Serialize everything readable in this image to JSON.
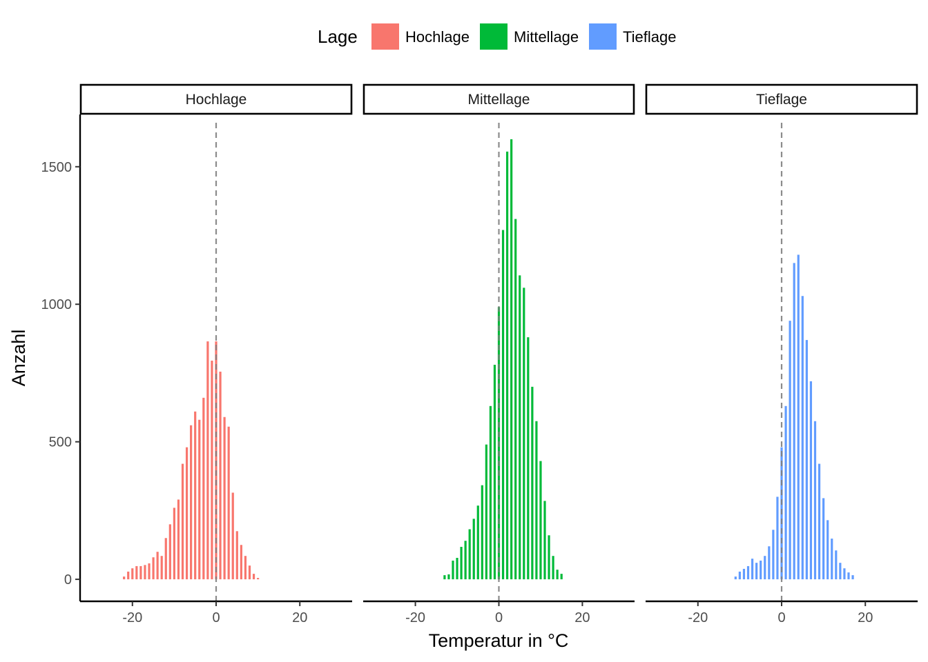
{
  "chart_data": {
    "type": "bar",
    "title": "",
    "xlabel": "Temperatur in °C",
    "ylabel": "Anzahl",
    "xlim": [
      -32.5,
      32.5
    ],
    "ylim": [
      -80,
      1690
    ],
    "x_ticks": [
      -20,
      0,
      20
    ],
    "x_tick_labels": [
      "-20",
      "0",
      "20"
    ],
    "y_ticks": [
      0,
      500,
      1000,
      1500
    ],
    "y_tick_labels": [
      "0",
      "500",
      "1000",
      "1500"
    ],
    "reference_line": {
      "x": 0,
      "style": "dashed",
      "color": "#7f7f7f"
    },
    "legend": {
      "title": "Lage",
      "position": "top",
      "entries": [
        {
          "label": "Hochlage",
          "color": "#F8766D"
        },
        {
          "label": "Mittellage",
          "color": "#00BA38"
        },
        {
          "label": "Tieflage",
          "color": "#619CFF"
        }
      ]
    },
    "facets": [
      {
        "label": "Hochlage",
        "color": "#F8766D",
        "x": [
          -22,
          -21,
          -20,
          -19,
          -18,
          -17,
          -16,
          -15,
          -14,
          -13,
          -12,
          -11,
          -10,
          -9,
          -8,
          -7,
          -6,
          -5,
          -4,
          -3,
          -2,
          -1,
          0,
          1,
          2,
          3,
          4,
          5,
          6,
          7,
          8,
          9,
          10
        ],
        "values": [
          10,
          28,
          40,
          48,
          48,
          52,
          58,
          80,
          100,
          85,
          150,
          200,
          260,
          290,
          420,
          480,
          560,
          610,
          580,
          660,
          865,
          795,
          865,
          755,
          590,
          555,
          315,
          175,
          125,
          85,
          50,
          20,
          5
        ]
      },
      {
        "label": "Mittellage",
        "color": "#00BA38",
        "x": [
          -13,
          -12,
          -11,
          -10,
          -9,
          -8,
          -7,
          -6,
          -5,
          -4,
          -3,
          -2,
          -1,
          0,
          1,
          2,
          3,
          4,
          5,
          6,
          7,
          8,
          9,
          10,
          11,
          12,
          13,
          14,
          15
        ],
        "values": [
          15,
          18,
          68,
          78,
          118,
          140,
          182,
          220,
          268,
          342,
          490,
          630,
          780,
          990,
          1270,
          1555,
          1600,
          1310,
          1105,
          1060,
          880,
          700,
          575,
          430,
          285,
          160,
          85,
          35,
          20
        ]
      },
      {
        "label": "Tieflage",
        "color": "#619CFF",
        "x": [
          -11,
          -10,
          -9,
          -8,
          -7,
          -6,
          -5,
          -4,
          -3,
          -2,
          -1,
          0,
          1,
          2,
          3,
          4,
          5,
          6,
          7,
          8,
          9,
          10,
          11,
          12,
          13,
          14,
          15,
          16,
          17
        ],
        "values": [
          10,
          28,
          38,
          48,
          75,
          60,
          68,
          85,
          120,
          180,
          300,
          480,
          630,
          940,
          1150,
          1180,
          1030,
          870,
          720,
          575,
          420,
          295,
          215,
          148,
          105,
          60,
          40,
          25,
          15
        ]
      }
    ]
  }
}
